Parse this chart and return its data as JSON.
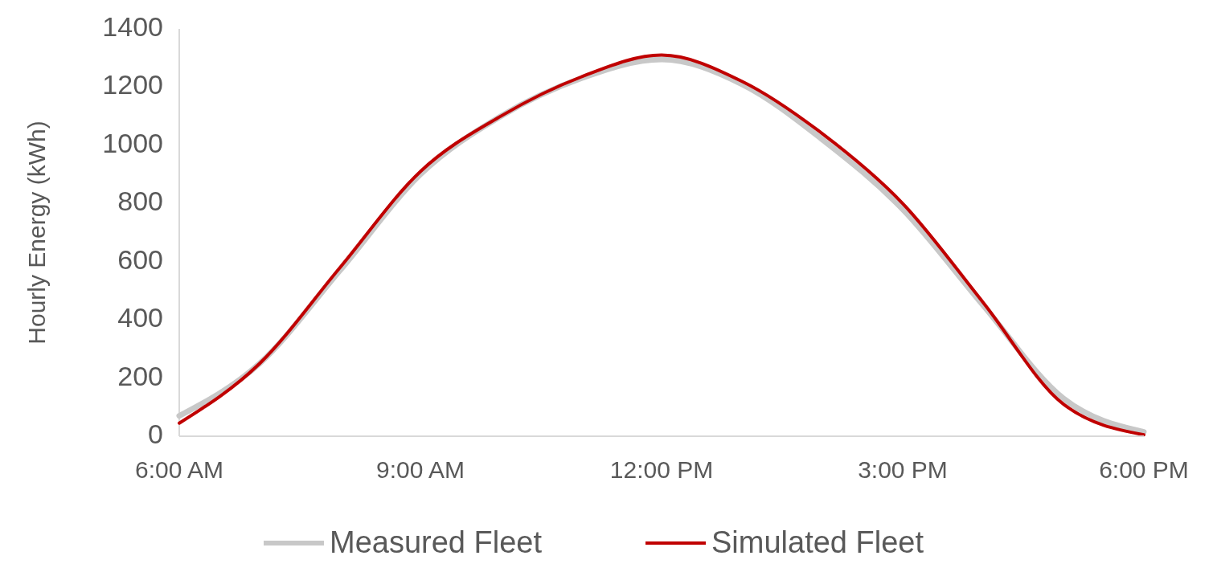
{
  "chart_data": {
    "type": "line",
    "ylabel": "Hourly Energy (kWh)",
    "x": [
      6,
      7,
      8,
      9,
      10,
      11,
      12,
      13,
      14,
      15,
      16,
      17,
      18
    ],
    "xlim": [
      6,
      18
    ],
    "xticks": [
      {
        "value": 6,
        "label": "6:00 AM"
      },
      {
        "value": 9,
        "label": "9:00 AM"
      },
      {
        "value": 12,
        "label": "12:00 PM"
      },
      {
        "value": 15,
        "label": "3:00 PM"
      },
      {
        "value": 18,
        "label": "6:00 PM"
      }
    ],
    "ylim": [
      0,
      1400
    ],
    "yticks": [
      0,
      200,
      400,
      600,
      800,
      1000,
      1200,
      1400
    ],
    "grid": false,
    "legend": "bottom",
    "marker": "none",
    "line_style": "solid",
    "series": [
      {
        "name": "Measured Fleet",
        "color": "#c8c8c8",
        "values": [
          70,
          250,
          570,
          900,
          1100,
          1230,
          1295,
          1210,
          1020,
          780,
          450,
          130,
          15
        ]
      },
      {
        "name": "Simulated Fleet",
        "color": "#c00000",
        "values": [
          45,
          250,
          580,
          910,
          1100,
          1235,
          1310,
          1220,
          1040,
          800,
          460,
          110,
          5
        ]
      }
    ]
  }
}
